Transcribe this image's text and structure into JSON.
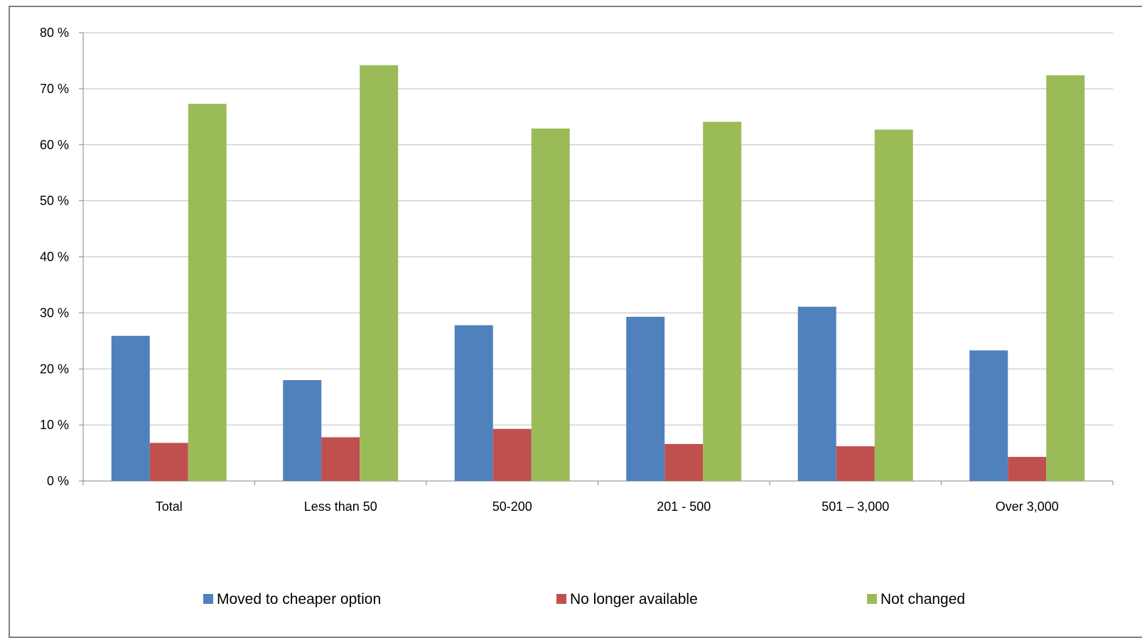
{
  "chart_data": {
    "type": "bar",
    "title": "",
    "xlabel": "",
    "ylabel": "",
    "ylim": [
      0,
      80
    ],
    "yticks": [
      0,
      10,
      20,
      30,
      40,
      50,
      60,
      70,
      80
    ],
    "ytick_labels": [
      "0 %",
      "10 %",
      "20 %",
      "30 %",
      "40 %",
      "50 %",
      "60 %",
      "70 %",
      "80 %"
    ],
    "grid": true,
    "legend_position": "bottom",
    "categories": [
      "Total",
      "Less than 50",
      "50-200",
      "201 - 500",
      "501 – 3,000",
      "Over 3,000"
    ],
    "series": [
      {
        "name": "Moved to cheaper option",
        "color": "#4F81BD",
        "values": [
          25.9,
          18.0,
          27.8,
          29.3,
          31.1,
          23.3
        ]
      },
      {
        "name": "No longer available",
        "color": "#C0504D",
        "values": [
          6.8,
          7.8,
          9.3,
          6.6,
          6.2,
          4.3
        ]
      },
      {
        "name": "Not changed",
        "color": "#9BBB59",
        "values": [
          67.3,
          74.2,
          62.9,
          64.1,
          62.7,
          72.4
        ]
      }
    ]
  }
}
